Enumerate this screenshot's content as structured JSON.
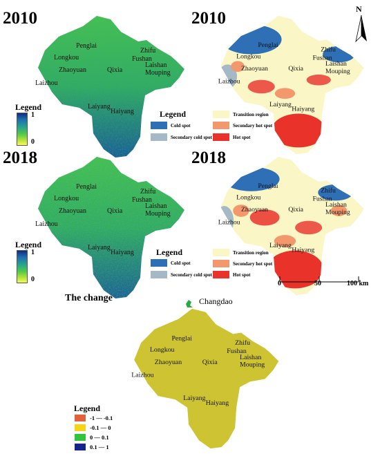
{
  "panels": {
    "top_left_year": "2010",
    "top_right_year": "2010",
    "middle_left_year": "2018",
    "middle_right_year": "2018",
    "change_title": "The change"
  },
  "places": [
    "Penglai",
    "Longkou",
    "Zhifu",
    "Fushan",
    "Laishan",
    "Mouping",
    "Zhaoyuan",
    "Qixia",
    "Laizhou",
    "Laiyang",
    "Haiyang"
  ],
  "island_label": "Changdao",
  "continuous_legend": {
    "title": "Legend",
    "max": "1",
    "min": "0"
  },
  "hotspot_legend": {
    "title": "Legend",
    "items": [
      {
        "label": "Cold spot",
        "color": "#2e6fb5"
      },
      {
        "label": "Secondary cold spot",
        "color": "#a4b8c6"
      },
      {
        "label": "Transition region",
        "color": "#fbf6c6"
      },
      {
        "label": "Secondary hot spot",
        "color": "#f3976d"
      },
      {
        "label": "Hot spot",
        "color": "#e8322a"
      }
    ]
  },
  "change_legend": {
    "title": "Legend",
    "items": [
      {
        "label": "-1 — -0.1",
        "color": "#e0623a"
      },
      {
        "label": "-0.1 — 0",
        "color": "#f4d51c"
      },
      {
        "label": "0 — 0.1",
        "color": "#34c43b"
      },
      {
        "label": "0.1 — 1",
        "color": "#16248a"
      }
    ]
  },
  "north_arrow": "N",
  "scale_bar": {
    "ticks": [
      "0",
      "50",
      "100 km"
    ]
  }
}
